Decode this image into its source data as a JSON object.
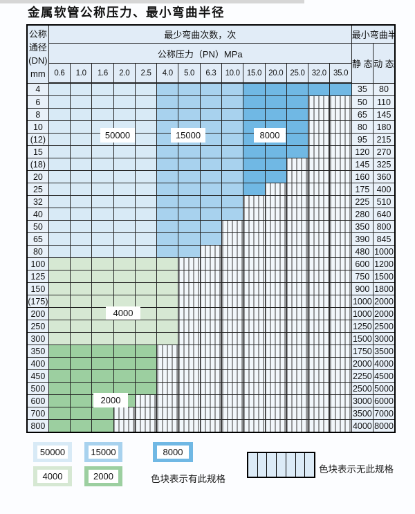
{
  "title": "金属软管公称压力、最小弯曲半径",
  "colors": {
    "b1": "#d8eaf6",
    "b2": "#a8d2ee",
    "b3": "#70b8e4",
    "g1": "#d6e8d3",
    "g2": "#9ccfa0",
    "headBg": "#e1ecf7",
    "sideBg": "#e9f1f9",
    "hatchBg": "#f2f7fb",
    "hatchLine": "#3a3a3a",
    "line": "#232323"
  },
  "table": {
    "corner_header": [
      "公称",
      "通径",
      "(DN)",
      "mm"
    ],
    "cycles_header": "最少弯曲次数，次",
    "radius_header": "最小弯曲半径",
    "pressure_header": "公称压力（PN）MPa",
    "pressure_columns": [
      "0.6",
      "1.0",
      "1.6",
      "2.0",
      "2.5",
      "4.0",
      "5.0",
      "6.3",
      "10.0",
      "15.0",
      "20.0",
      "25.0",
      "32.0",
      "35.0"
    ],
    "static_header": "静 态",
    "dynamic_header": "动 态",
    "rows": [
      {
        "dn": "4",
        "cells": [
          "b1",
          "b1",
          "b1",
          "b1",
          "b1",
          "b2",
          "b2",
          "b2",
          "b2",
          "b3",
          "b3",
          "b3",
          "b3",
          "b3"
        ],
        "static": "35",
        "dynamic": "80"
      },
      {
        "dn": "6",
        "cells": [
          "b1",
          "b1",
          "b1",
          "b1",
          "b1",
          "b2",
          "b2",
          "b2",
          "b2",
          "b3",
          "b3",
          "b3",
          "x",
          "x"
        ],
        "static": "50",
        "dynamic": "110"
      },
      {
        "dn": "8",
        "cells": [
          "b1",
          "b1",
          "b1",
          "b1",
          "b1",
          "b2",
          "b2",
          "b2",
          "b2",
          "b3",
          "b3",
          "b3",
          "x",
          "x"
        ],
        "static": "65",
        "dynamic": "145"
      },
      {
        "dn": "10",
        "cells": [
          "b1",
          "b1",
          "b1",
          "b1",
          "b1",
          "b2",
          "b2",
          "b2",
          "b2",
          "b3",
          "b3",
          "b3",
          "x",
          "x"
        ],
        "static": "80",
        "dynamic": "180"
      },
      {
        "dn": "(12)",
        "cells": [
          "b1",
          "b1",
          "b1",
          "b1",
          "b1",
          "b2",
          "b2",
          "b2",
          "b2",
          "b3",
          "b3",
          "b3",
          "x",
          "x"
        ],
        "static": "95",
        "dynamic": "215"
      },
      {
        "dn": "15",
        "cells": [
          "b1",
          "b1",
          "b1",
          "b1",
          "b1",
          "b2",
          "b2",
          "b2",
          "b2",
          "b3",
          "b3",
          "b3",
          "x",
          "x"
        ],
        "static": "120",
        "dynamic": "270"
      },
      {
        "dn": "(18)",
        "cells": [
          "b1",
          "b1",
          "b1",
          "b1",
          "b1",
          "b2",
          "b2",
          "b2",
          "b2",
          "b3",
          "b3",
          "x",
          "x",
          "x"
        ],
        "static": "145",
        "dynamic": "325"
      },
      {
        "dn": "20",
        "cells": [
          "b1",
          "b1",
          "b1",
          "b1",
          "b1",
          "b2",
          "b2",
          "b2",
          "b2",
          "b3",
          "b3",
          "x",
          "x",
          "x"
        ],
        "static": "160",
        "dynamic": "360"
      },
      {
        "dn": "25",
        "cells": [
          "b1",
          "b1",
          "b1",
          "b1",
          "b1",
          "b2",
          "b2",
          "b2",
          "b2",
          "b3",
          "x",
          "x",
          "x",
          "x"
        ],
        "static": "175",
        "dynamic": "400"
      },
      {
        "dn": "32",
        "cells": [
          "b1",
          "b1",
          "b1",
          "b1",
          "b1",
          "b2",
          "b2",
          "b2",
          "b2",
          "x",
          "x",
          "x",
          "x",
          "x"
        ],
        "static": "225",
        "dynamic": "510"
      },
      {
        "dn": "40",
        "cells": [
          "b1",
          "b1",
          "b1",
          "b1",
          "b1",
          "b2",
          "b2",
          "b2",
          "b2",
          "x",
          "x",
          "x",
          "x",
          "x"
        ],
        "static": "280",
        "dynamic": "640"
      },
      {
        "dn": "50",
        "cells": [
          "b1",
          "b1",
          "b1",
          "b1",
          "b1",
          "b2",
          "b2",
          "b2",
          "x",
          "x",
          "x",
          "x",
          "x",
          "x"
        ],
        "static": "350",
        "dynamic": "800"
      },
      {
        "dn": "65",
        "cells": [
          "b1",
          "b1",
          "b1",
          "b1",
          "b1",
          "b2",
          "b2",
          "b2",
          "x",
          "x",
          "x",
          "x",
          "x",
          "x"
        ],
        "static": "390",
        "dynamic": "845"
      },
      {
        "dn": "80",
        "cells": [
          "b1",
          "b1",
          "b1",
          "b1",
          "b1",
          "b2",
          "b2",
          "x",
          "x",
          "x",
          "x",
          "x",
          "x",
          "x"
        ],
        "static": "480",
        "dynamic": "1000"
      },
      {
        "dn": "100",
        "cells": [
          "g1",
          "g1",
          "g1",
          "g1",
          "g1",
          "g1",
          "x",
          "x",
          "x",
          "x",
          "x",
          "x",
          "x",
          "x"
        ],
        "static": "600",
        "dynamic": "1200"
      },
      {
        "dn": "125",
        "cells": [
          "g1",
          "g1",
          "g1",
          "g1",
          "g1",
          "g1",
          "x",
          "x",
          "x",
          "x",
          "x",
          "x",
          "x",
          "x"
        ],
        "static": "750",
        "dynamic": "1500"
      },
      {
        "dn": "150",
        "cells": [
          "g1",
          "g1",
          "g1",
          "g1",
          "g1",
          "g1",
          "x",
          "x",
          "x",
          "x",
          "x",
          "x",
          "x",
          "x"
        ],
        "static": "900",
        "dynamic": "1800"
      },
      {
        "dn": "(175)",
        "cells": [
          "g1",
          "g1",
          "g1",
          "g1",
          "g1",
          "g1",
          "x",
          "x",
          "x",
          "x",
          "x",
          "x",
          "x",
          "x"
        ],
        "static": "1000",
        "dynamic": "2000"
      },
      {
        "dn": "200",
        "cells": [
          "g1",
          "g1",
          "g1",
          "g1",
          "g1",
          "g1",
          "x",
          "x",
          "x",
          "x",
          "x",
          "x",
          "x",
          "x"
        ],
        "static": "1000",
        "dynamic": "2000"
      },
      {
        "dn": "250",
        "cells": [
          "g1",
          "g1",
          "g1",
          "g1",
          "g1",
          "g1",
          "x",
          "x",
          "x",
          "x",
          "x",
          "x",
          "x",
          "x"
        ],
        "static": "1250",
        "dynamic": "2500"
      },
      {
        "dn": "300",
        "cells": [
          "g1",
          "g1",
          "g1",
          "g1",
          "g1",
          "g1",
          "x",
          "x",
          "x",
          "x",
          "x",
          "x",
          "x",
          "x"
        ],
        "static": "1500",
        "dynamic": "3000"
      },
      {
        "dn": "350",
        "cells": [
          "g2",
          "g2",
          "g2",
          "g2",
          "g2",
          "x",
          "x",
          "x",
          "x",
          "x",
          "x",
          "x",
          "x",
          "x"
        ],
        "static": "1750",
        "dynamic": "3500"
      },
      {
        "dn": "400",
        "cells": [
          "g2",
          "g2",
          "g2",
          "g2",
          "g2",
          "x",
          "x",
          "x",
          "x",
          "x",
          "x",
          "x",
          "x",
          "x"
        ],
        "static": "2000",
        "dynamic": "4000"
      },
      {
        "dn": "450",
        "cells": [
          "g2",
          "g2",
          "g2",
          "g2",
          "g2",
          "x",
          "x",
          "x",
          "x",
          "x",
          "x",
          "x",
          "x",
          "x"
        ],
        "static": "2250",
        "dynamic": "4500"
      },
      {
        "dn": "500",
        "cells": [
          "g2",
          "g2",
          "g2",
          "g2",
          "g2",
          "x",
          "x",
          "x",
          "x",
          "x",
          "x",
          "x",
          "x",
          "x"
        ],
        "static": "2500",
        "dynamic": "5000"
      },
      {
        "dn": "600",
        "cells": [
          "g2",
          "g2",
          "g2",
          "g2",
          "x",
          "x",
          "x",
          "x",
          "x",
          "x",
          "x",
          "x",
          "x",
          "x"
        ],
        "static": "3000",
        "dynamic": "6000"
      },
      {
        "dn": "700",
        "cells": [
          "g2",
          "g2",
          "g2",
          "x",
          "x",
          "x",
          "x",
          "x",
          "x",
          "x",
          "x",
          "x",
          "x",
          "x"
        ],
        "static": "3500",
        "dynamic": "7000"
      },
      {
        "dn": "800",
        "cells": [
          "g2",
          "g2",
          "g2",
          "x",
          "x",
          "x",
          "x",
          "x",
          "x",
          "x",
          "x",
          "x",
          "x",
          "x"
        ],
        "static": "4000",
        "dynamic": "8000"
      }
    ]
  },
  "in_table_labels": [
    {
      "text": "50000"
    },
    {
      "text": "15000"
    },
    {
      "text": "8000"
    },
    {
      "text": "4000"
    },
    {
      "text": "2000"
    }
  ],
  "legend": {
    "swatches": [
      {
        "label": "50000",
        "color_key": "b1"
      },
      {
        "label": "15000",
        "color_key": "b2"
      },
      {
        "label": "8000",
        "color_key": "b3"
      },
      {
        "label": "4000",
        "color_key": "g1"
      },
      {
        "label": "2000",
        "color_key": "g2"
      }
    ],
    "has_spec_text": "色块表示有此规格",
    "no_spec_text": "色块表示无此规格"
  }
}
